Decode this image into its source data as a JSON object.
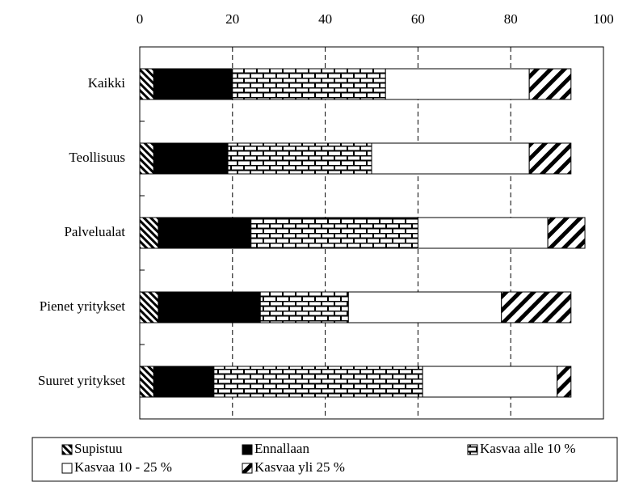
{
  "chart_data": {
    "type": "stacked-barh",
    "categories": [
      "Kaikki",
      "Teollisuus",
      "Palvelualat",
      "Pienet yritykset",
      "Suuret yritykset"
    ],
    "series": [
      {
        "name": "Supistuu",
        "color": "#000000",
        "values": [
          3,
          3,
          4,
          4,
          3
        ]
      },
      {
        "name": "Ennallaan",
        "color": "#000000",
        "values": [
          17,
          16,
          20,
          22,
          13
        ]
      },
      {
        "name": "Kasvaa alle 10 %",
        "color": "#000000",
        "values": [
          33,
          31,
          36,
          19,
          45
        ]
      },
      {
        "name": "Kasvaa 10 - 25 %",
        "color": "#ffffff",
        "values": [
          31,
          34,
          28,
          33,
          29
        ]
      },
      {
        "name": "Kasvaa yli 25 %",
        "color": "#000000",
        "values": [
          9,
          9,
          8,
          15,
          3
        ]
      }
    ],
    "xlim": [
      0,
      100
    ],
    "xticks": [
      0,
      20,
      40,
      60,
      80,
      100
    ],
    "grid": true,
    "legend": "bottom"
  }
}
